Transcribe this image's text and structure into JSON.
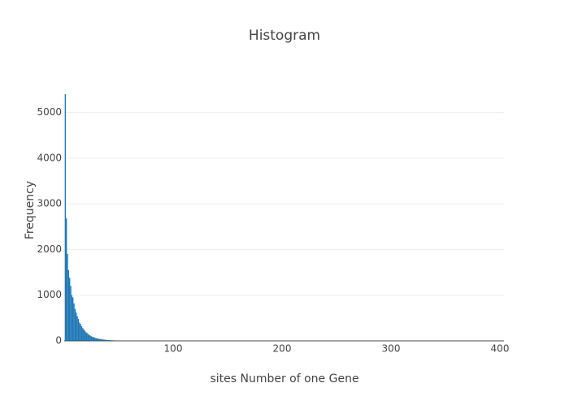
{
  "chart_data": {
    "type": "histogram",
    "title": "Histogram",
    "x_label": "sites Number of one Gene",
    "y_label": "Frequency",
    "bins": [
      0.5,
      1.5,
      2.5,
      3.5,
      4.5,
      5.5,
      6.5,
      7.5,
      8.5,
      9.5,
      10.5,
      11.5,
      12.5,
      13.5,
      14.5,
      15.5,
      16.5,
      17.5,
      18.5,
      19.5,
      20.5,
      21.5,
      22.5,
      23.5,
      24.5,
      25.5,
      26.5,
      27.5,
      28.5,
      29.5,
      30.5,
      31.5,
      32.5,
      33.5,
      34.5,
      35.5,
      36.5,
      37.5,
      38.5,
      39.5,
      40.5,
      41.5,
      42.5,
      43.5,
      44.5,
      45.5,
      46.5,
      47.5,
      48.5,
      49.5,
      50.5,
      51.5,
      52.5,
      53.5,
      54.5,
      55.5,
      56.5,
      57.5,
      58.5,
      59.5,
      60.5,
      61.5,
      62.5,
      63.5,
      64.5,
      65.5
    ],
    "values": [
      5400,
      2680,
      1900,
      1550,
      1380,
      1200,
      1000,
      950,
      820,
      700,
      620,
      540,
      480,
      400,
      370,
      320,
      280,
      250,
      220,
      190,
      170,
      150,
      130,
      115,
      100,
      90,
      80,
      70,
      62,
      55,
      50,
      45,
      40,
      36,
      32,
      29,
      26,
      23,
      21,
      19,
      17,
      15,
      14,
      12,
      11,
      10,
      9,
      8,
      7,
      7,
      6,
      6,
      5,
      5,
      4,
      4,
      3,
      3,
      3,
      2,
      2,
      2,
      2,
      1,
      1
    ],
    "color": "#1f77b4",
    "xlim": [
      0,
      400
    ],
    "xticks": [
      100,
      200,
      300,
      400
    ],
    "ylim": [
      0,
      5400
    ],
    "yticks": [
      0,
      1000,
      2000,
      3000,
      4000,
      5000
    ],
    "grid": true
  }
}
